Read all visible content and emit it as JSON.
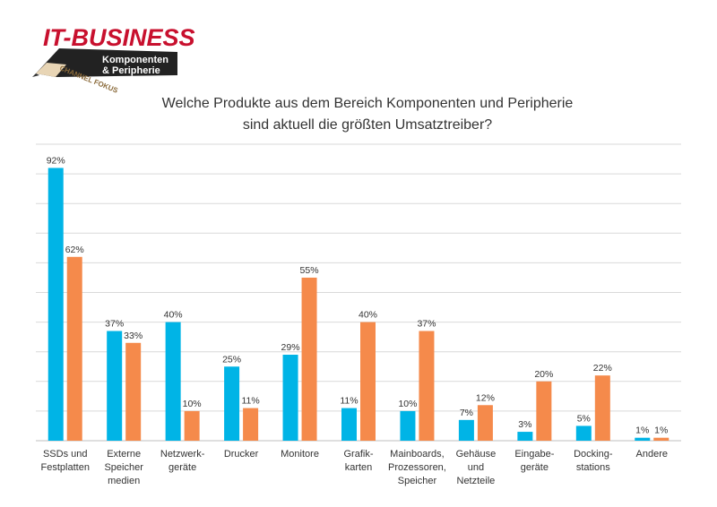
{
  "logo": {
    "brand": "IT-BUSINESS",
    "channel_text": "CHANNEL FOKUS",
    "topic_line1": "Komponenten",
    "topic_line2": "& Peripherie"
  },
  "colors": {
    "series_blue": "#00b4e6",
    "series_orange": "#f58a4b",
    "gridline": "#d9d9d9",
    "axis": "#bfbfbf",
    "logo_red": "#c8102e",
    "logo_dark": "#222222"
  },
  "chart_data": {
    "type": "bar",
    "title_lines": [
      "Welche Produkte aus dem Bereich Komponenten und Peripherie",
      "sind aktuell die größten Umsatztreiber?"
    ],
    "categories": [
      [
        "SSDs und",
        "Festplatten"
      ],
      [
        "Externe",
        "Speicher",
        "medien"
      ],
      [
        "Netzwerk-",
        "geräte"
      ],
      [
        "Drucker"
      ],
      [
        "Monitore"
      ],
      [
        "Grafik-",
        "karten"
      ],
      [
        "Mainboards,",
        "Prozessoren,",
        "Speicher"
      ],
      [
        "Gehäuse",
        "und",
        "Netzteile"
      ],
      [
        "Eingabe-",
        "geräte"
      ],
      [
        "Docking-",
        "stations"
      ],
      [
        "Andere"
      ]
    ],
    "series": [
      {
        "values": [
          92,
          37,
          40,
          25,
          29,
          11,
          10,
          7,
          3,
          5,
          1
        ]
      },
      {
        "values": [
          62,
          33,
          10,
          11,
          55,
          40,
          37,
          12,
          20,
          22,
          1
        ]
      }
    ],
    "value_suffix": "%",
    "ylim": [
      0,
      100
    ],
    "grid_step": 10,
    "grid": true,
    "legend": "none"
  }
}
